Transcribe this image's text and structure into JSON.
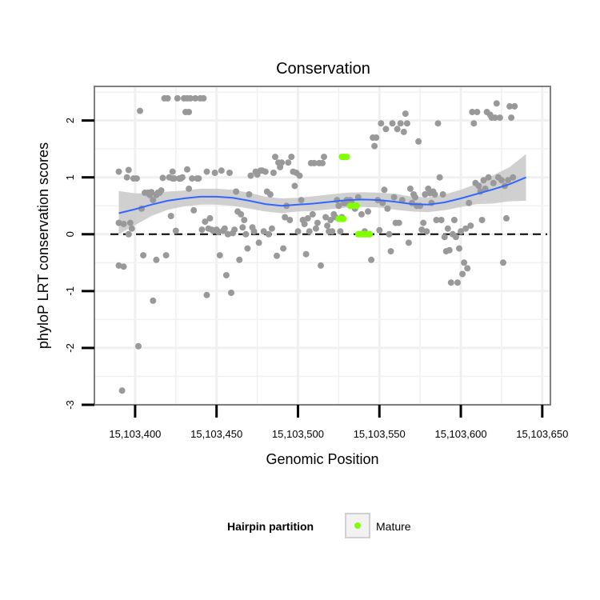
{
  "chart_data": {
    "type": "scatter",
    "title": "Conservation",
    "xlabel": "Genomic Position",
    "ylabel": "phyloP LRT conservation scores",
    "xlim": [
      15103375,
      15103655
    ],
    "ylim": [
      -3,
      2.6
    ],
    "x_ticks": [
      15103400,
      15103450,
      15103500,
      15103550,
      15103600,
      15103650
    ],
    "x_tick_labels": [
      "15,103,400",
      "15,103,450",
      "15,103,500",
      "15,103,550",
      "15,103,600",
      "15,103,650"
    ],
    "y_ticks": [
      -3,
      -2,
      -1,
      0,
      1,
      2
    ],
    "y_tick_labels": [
      "-3",
      "-2",
      "-1",
      "0",
      "1",
      "2"
    ],
    "grid": true,
    "reference_line": {
      "y": 0,
      "style": "dashed"
    },
    "colors": {
      "points": "#999999",
      "mature": "#7fff00",
      "smooth": "#3366ff",
      "ribbon": "#c8c8c8",
      "grid": "#f0f0f0",
      "border": "#7f7f7f"
    },
    "legend": {
      "title": "Hairpin partition",
      "position": "bottom",
      "entries": [
        {
          "label": "Mature",
          "color": "#7fff00"
        }
      ]
    },
    "series": [
      {
        "points": [
          [
            15103390,
            1.1
          ],
          [
            15103390,
            0.2
          ],
          [
            15103390,
            -0.55
          ],
          [
            15103392,
            -2.75
          ],
          [
            15103393,
            -0.57
          ],
          [
            15103393,
            0.18
          ],
          [
            15103395,
            1.0
          ],
          [
            15103396,
            1.13
          ],
          [
            15103396,
            0.0
          ],
          [
            15103397,
            0.2
          ],
          [
            15103398,
            0.1
          ],
          [
            15103399,
            0.98
          ],
          [
            15103401,
            0.98
          ],
          [
            15103402,
            -1.97
          ],
          [
            15103403,
            2.17
          ],
          [
            15103404,
            0.45
          ],
          [
            15103405,
            -0.37
          ],
          [
            15103406,
            0.73
          ],
          [
            15103408,
            0.73
          ],
          [
            15103409,
            0.69
          ],
          [
            15103410,
            0.74
          ],
          [
            15103411,
            0.6
          ],
          [
            15103411,
            -1.17
          ],
          [
            15103413,
            0.69
          ],
          [
            15103413,
            -0.45
          ],
          [
            15103414,
            0.73
          ],
          [
            15103415,
            0.73
          ],
          [
            15103416,
            0.77
          ],
          [
            15103417,
            0.99
          ],
          [
            15103418,
            2.39
          ],
          [
            15103419,
            -0.37
          ],
          [
            15103420,
            2.39
          ],
          [
            15103421,
            1.0
          ],
          [
            15103422,
            0.32
          ],
          [
            15103423,
            1.1
          ],
          [
            15103423,
            0.98
          ],
          [
            15103424,
            0.98
          ],
          [
            15103425,
            0.06
          ],
          [
            15103426,
            2.39
          ],
          [
            15103427,
            0.98
          ],
          [
            15103428,
            0.98
          ],
          [
            15103429,
            1.0
          ],
          [
            15103430,
            2.39
          ],
          [
            15103431,
            2.15
          ],
          [
            15103432,
            1.14
          ],
          [
            15103432,
            2.39
          ],
          [
            15103433,
            2.15
          ],
          [
            15103433,
            0.8
          ],
          [
            15103434,
            2.39
          ],
          [
            15103435,
            0.98
          ],
          [
            15103436,
            0.42
          ],
          [
            15103437,
            2.39
          ],
          [
            15103438,
            0.98
          ],
          [
            15103439,
            0.98
          ],
          [
            15103440,
            2.39
          ],
          [
            15103441,
            0.08
          ],
          [
            15103442,
            2.39
          ],
          [
            15103443,
            0.22
          ],
          [
            15103444,
            1.1
          ],
          [
            15103444,
            -1.07
          ],
          [
            15103445,
            0.1
          ],
          [
            15103446,
            0.28
          ],
          [
            15103447,
            0.08
          ],
          [
            15103448,
            0.06
          ],
          [
            15103449,
            1.08
          ],
          [
            15103450,
            0.08
          ],
          [
            15103451,
            0.04
          ],
          [
            15103452,
            -0.37
          ],
          [
            15103453,
            1.12
          ],
          [
            15103454,
            0.06
          ],
          [
            15103455,
            0.1
          ],
          [
            15103456,
            -0.72
          ],
          [
            15103457,
            0.0
          ],
          [
            15103458,
            1.08
          ],
          [
            15103459,
            -1.03
          ],
          [
            15103460,
            0.02
          ],
          [
            15103461,
            0.08
          ],
          [
            15103462,
            0.75
          ],
          [
            15103463,
            0.4
          ],
          [
            15103464,
            -0.45
          ],
          [
            15103465,
            0.35
          ],
          [
            15103466,
            0.12
          ],
          [
            15103467,
            0.25
          ],
          [
            15103468,
            0.0
          ],
          [
            15103469,
            -0.25
          ],
          [
            15103470,
            0.7
          ],
          [
            15103471,
            1.03
          ],
          [
            15103472,
            0.12
          ],
          [
            15103473,
            0.05
          ],
          [
            15103474,
            1.1
          ],
          [
            15103475,
            1.05
          ],
          [
            15103476,
            -0.15
          ],
          [
            15103477,
            1.12
          ],
          [
            15103478,
            1.12
          ],
          [
            15103479,
            0.05
          ],
          [
            15103480,
            1.1
          ],
          [
            15103481,
            0.75
          ],
          [
            15103482,
            0.0
          ],
          [
            15103483,
            0.7
          ],
          [
            15103484,
            0.1
          ],
          [
            15103485,
            1.08
          ],
          [
            15103486,
            1.36
          ],
          [
            15103487,
            -0.38
          ],
          [
            15103488,
            1.26
          ],
          [
            15103489,
            1.18
          ],
          [
            15103490,
            1.26
          ],
          [
            15103491,
            -0.25
          ],
          [
            15103492,
            0.3
          ],
          [
            15103493,
            0.5
          ],
          [
            15103494,
            1.26
          ],
          [
            15103495,
            0.25
          ],
          [
            15103496,
            1.36
          ],
          [
            15103497,
            1.1
          ],
          [
            15103498,
            0.85
          ],
          [
            15103499,
            1.08
          ],
          [
            15103500,
            0.05
          ],
          [
            15103501,
            1.03
          ],
          [
            15103502,
            0.6
          ],
          [
            15103503,
            0.25
          ],
          [
            15103504,
            0.18
          ],
          [
            15103505,
            -0.35
          ],
          [
            15103506,
            0.28
          ],
          [
            15103507,
            0.05
          ],
          [
            15103508,
            1.25
          ],
          [
            15103509,
            0.35
          ],
          [
            15103510,
            1.25
          ],
          [
            15103511,
            0.1
          ],
          [
            15103512,
            0.2
          ],
          [
            15103513,
            1.25
          ],
          [
            15103514,
            -0.55
          ],
          [
            15103515,
            1.25
          ],
          [
            15103516,
            1.36
          ],
          [
            15103517,
            0.3
          ],
          [
            15103518,
            0.15
          ],
          [
            15103519,
            0.05
          ],
          [
            15103520,
            0.25
          ],
          [
            15103521,
            0.05
          ],
          [
            15103522,
            0.35
          ],
          [
            15103523,
            0.3
          ],
          [
            15103524,
            0.6
          ],
          [
            15103525,
            0.5
          ],
          [
            15103526,
            0.05
          ],
          [
            15103527,
            0.3
          ],
          [
            15103528,
            0.55
          ],
          [
            15103529,
            0.55
          ],
          [
            15103530,
            0.6
          ],
          [
            15103531,
            0.55
          ],
          [
            15103532,
            0.6
          ],
          [
            15103533,
            0.55
          ],
          [
            15103535,
            0.45
          ],
          [
            15103537,
            0.65
          ],
          [
            15103539,
            0.35
          ],
          [
            15103541,
            0.05
          ],
          [
            15103543,
            0.4
          ],
          [
            15103544,
            0.0
          ],
          [
            15103545,
            -0.45
          ],
          [
            15103546,
            1.7
          ],
          [
            15103547,
            1.55
          ],
          [
            15103548,
            1.7
          ],
          [
            15103549,
            0.6
          ],
          [
            15103550,
            0.07
          ],
          [
            15103551,
            1.95
          ],
          [
            15103552,
            0.55
          ],
          [
            15103553,
            0.78
          ],
          [
            15103554,
            1.85
          ],
          [
            15103555,
            0.45
          ],
          [
            15103556,
            0.0
          ],
          [
            15103557,
            -0.3
          ],
          [
            15103558,
            1.95
          ],
          [
            15103559,
            0.65
          ],
          [
            15103560,
            0.2
          ],
          [
            15103561,
            1.85
          ],
          [
            15103562,
            0.2
          ],
          [
            15103563,
            1.95
          ],
          [
            15103564,
            0.6
          ],
          [
            15103565,
            1.8
          ],
          [
            15103566,
            2.12
          ],
          [
            15103567,
            1.95
          ],
          [
            15103568,
            -0.15
          ],
          [
            15103569,
            0.8
          ],
          [
            15103570,
            0.55
          ],
          [
            15103571,
            0.7
          ],
          [
            15103572,
            0.65
          ],
          [
            15103573,
            0.5
          ],
          [
            15103574,
            1.63
          ],
          [
            15103575,
            0.5
          ],
          [
            15103576,
            0.08
          ],
          [
            15103577,
            0.2
          ],
          [
            15103578,
            0.7
          ],
          [
            15103579,
            0.05
          ],
          [
            15103580,
            0.8
          ],
          [
            15103581,
            0.72
          ],
          [
            15103582,
            0.55
          ],
          [
            15103583,
            0.75
          ],
          [
            15103584,
            0.7
          ],
          [
            15103585,
            0.25
          ],
          [
            15103586,
            1.95
          ],
          [
            15103587,
            1.0
          ],
          [
            15103588,
            0.25
          ],
          [
            15103589,
            0.7
          ],
          [
            15103590,
            -0.05
          ],
          [
            15103591,
            -0.3
          ],
          [
            15103592,
            0.1
          ],
          [
            15103593,
            -0.28
          ],
          [
            15103594,
            -0.85
          ],
          [
            15103595,
            0.0
          ],
          [
            15103596,
            0.25
          ],
          [
            15103597,
            -0.05
          ],
          [
            15103598,
            -0.85
          ],
          [
            15103599,
            -0.25
          ],
          [
            15103600,
            0.05
          ],
          [
            15103601,
            -0.7
          ],
          [
            15103602,
            -0.5
          ],
          [
            15103603,
            0.1
          ],
          [
            15103604,
            -0.6
          ],
          [
            15103605,
            0.55
          ],
          [
            15103606,
            0.15
          ],
          [
            15103607,
            2.15
          ],
          [
            15103608,
            1.95
          ],
          [
            15103609,
            0.9
          ],
          [
            15103610,
            2.15
          ],
          [
            15103611,
            0.85
          ],
          [
            15103612,
            0.75
          ],
          [
            15103613,
            0.25
          ],
          [
            15103614,
            0.95
          ],
          [
            15103615,
            0.8
          ],
          [
            15103616,
            2.15
          ],
          [
            15103617,
            1.0
          ],
          [
            15103618,
            2.1
          ],
          [
            15103619,
            2.05
          ],
          [
            15103620,
            0.9
          ],
          [
            15103621,
            2.05
          ],
          [
            15103622,
            2.3
          ],
          [
            15103623,
            1.0
          ],
          [
            15103624,
            2.05
          ],
          [
            15103625,
            0.95
          ],
          [
            15103626,
            -0.5
          ],
          [
            15103627,
            0.85
          ],
          [
            15103628,
            0.28
          ],
          [
            15103629,
            0.95
          ],
          [
            15103630,
            2.25
          ],
          [
            15103631,
            2.05
          ],
          [
            15103632,
            1.0
          ],
          [
            15103633,
            2.25
          ]
        ]
      },
      {
        "name": "Mature",
        "points": [
          [
            15103527,
            1.36
          ],
          [
            15103528,
            1.36
          ],
          [
            15103529,
            1.36
          ],
          [
            15103530,
            1.36
          ],
          [
            15103525,
            0.27
          ],
          [
            15103526,
            0.27
          ],
          [
            15103527,
            0.27
          ],
          [
            15103528,
            0.27
          ],
          [
            15103532,
            0.5
          ],
          [
            15103533,
            0.5
          ],
          [
            15103534,
            0.5
          ],
          [
            15103535,
            0.5
          ],
          [
            15103536,
            0.5
          ],
          [
            15103537,
            0.0
          ],
          [
            15103538,
            0.0
          ],
          [
            15103539,
            0.0
          ],
          [
            15103540,
            0.0
          ],
          [
            15103541,
            0.0
          ],
          [
            15103542,
            0.0
          ],
          [
            15103543,
            0.0
          ],
          [
            15103544,
            0.0
          ]
        ]
      }
    ],
    "smooth": {
      "x": [
        15103390,
        15103400,
        15103410,
        15103420,
        15103430,
        15103440,
        15103450,
        15103460,
        15103470,
        15103480,
        15103490,
        15103500,
        15103510,
        15103520,
        15103530,
        15103540,
        15103550,
        15103560,
        15103570,
        15103580,
        15103590,
        15103600,
        15103610,
        15103620,
        15103630,
        15103640
      ],
      "y": [
        0.37,
        0.44,
        0.52,
        0.59,
        0.63,
        0.66,
        0.66,
        0.64,
        0.59,
        0.53,
        0.5,
        0.52,
        0.54,
        0.57,
        0.6,
        0.61,
        0.6,
        0.57,
        0.53,
        0.52,
        0.56,
        0.63,
        0.71,
        0.79,
        0.88,
        1.0
      ],
      "upper": [
        0.76,
        0.72,
        0.72,
        0.75,
        0.77,
        0.8,
        0.8,
        0.78,
        0.73,
        0.66,
        0.63,
        0.64,
        0.67,
        0.7,
        0.73,
        0.74,
        0.73,
        0.71,
        0.66,
        0.65,
        0.7,
        0.78,
        0.89,
        1.04,
        1.18,
        1.41
      ],
      "lower": [
        0.0,
        0.16,
        0.32,
        0.43,
        0.49,
        0.52,
        0.52,
        0.5,
        0.45,
        0.4,
        0.37,
        0.4,
        0.41,
        0.44,
        0.47,
        0.48,
        0.47,
        0.43,
        0.4,
        0.39,
        0.42,
        0.48,
        0.53,
        0.54,
        0.58,
        0.59
      ]
    }
  }
}
